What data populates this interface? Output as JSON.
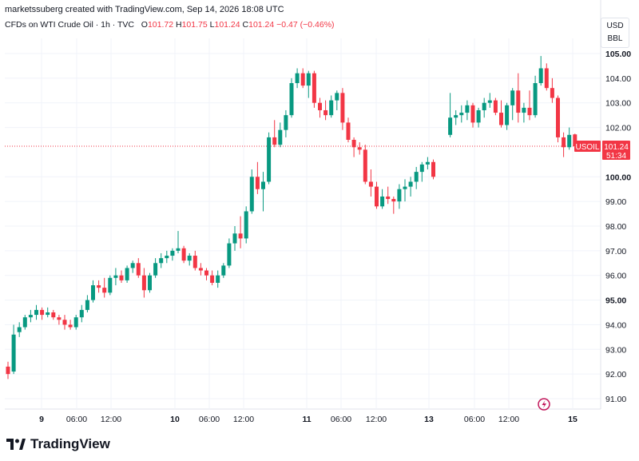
{
  "header": {
    "attribution": "marketssuberg created with TradingView.com, Sep 14, 2026 18:08 UTC",
    "instrument": "CFDs on WTI Crude Oil · 1h · TVC",
    "open_label": "O",
    "open": "101.72",
    "high_label": "H",
    "high": "101.75",
    "low_label": "L",
    "low": "101.24",
    "close_label": "C",
    "close": "101.24",
    "change": "−0.47 (−0.46%)"
  },
  "price_axis": {
    "currency": "USD",
    "unit": "BBL",
    "ticks": [
      "105.00",
      "104.00",
      "103.00",
      "102.00",
      "100.00",
      "99.00",
      "98.00",
      "97.00",
      "96.00",
      "95.00",
      "94.00",
      "93.00",
      "92.00",
      "91.00"
    ],
    "bold_ticks": [
      "105.00",
      "100.00",
      "95.00"
    ],
    "current_symbol": "USOIL",
    "current_price": "101.24",
    "countdown": "51:34"
  },
  "footer": {
    "logo_text": "TradingView"
  },
  "chart_data": {
    "type": "candlestick",
    "interval": "1h",
    "ylim": [
      90.5,
      105.6
    ],
    "current_price": 101.24,
    "up_color": "#089981",
    "down_color": "#f23645",
    "x_ticks": [
      "9",
      "06:00",
      "12:00",
      "10",
      "06:00",
      "12:00",
      "11",
      "06:00",
      "12:00",
      "13",
      "06:00",
      "12:00",
      "15"
    ],
    "x_ticks_bold": [
      "9",
      "10",
      "11",
      "13",
      "15"
    ],
    "grid": true,
    "candles": [
      {
        "o": 92.3,
        "h": 92.5,
        "l": 91.8,
        "c": 92.0
      },
      {
        "o": 92.1,
        "h": 94.0,
        "l": 92.0,
        "c": 93.6
      },
      {
        "o": 93.7,
        "h": 94.1,
        "l": 93.5,
        "c": 93.9
      },
      {
        "o": 93.9,
        "h": 94.4,
        "l": 93.8,
        "c": 94.3
      },
      {
        "o": 94.3,
        "h": 94.6,
        "l": 94.1,
        "c": 94.4
      },
      {
        "o": 94.4,
        "h": 94.8,
        "l": 94.2,
        "c": 94.6
      },
      {
        "o": 94.6,
        "h": 94.7,
        "l": 94.2,
        "c": 94.4
      },
      {
        "o": 94.4,
        "h": 94.7,
        "l": 94.3,
        "c": 94.5
      },
      {
        "o": 94.5,
        "h": 94.6,
        "l": 94.2,
        "c": 94.3
      },
      {
        "o": 94.3,
        "h": 94.4,
        "l": 94.0,
        "c": 94.2
      },
      {
        "o": 94.2,
        "h": 94.4,
        "l": 93.8,
        "c": 94.0
      },
      {
        "o": 94.0,
        "h": 94.2,
        "l": 93.8,
        "c": 93.9
      },
      {
        "o": 93.9,
        "h": 94.4,
        "l": 93.8,
        "c": 94.3
      },
      {
        "o": 94.3,
        "h": 94.8,
        "l": 94.1,
        "c": 94.6
      },
      {
        "o": 94.6,
        "h": 95.2,
        "l": 94.5,
        "c": 95.0
      },
      {
        "o": 95.0,
        "h": 95.8,
        "l": 94.9,
        "c": 95.6
      },
      {
        "o": 95.6,
        "h": 95.8,
        "l": 95.3,
        "c": 95.5
      },
      {
        "o": 95.5,
        "h": 95.9,
        "l": 95.1,
        "c": 95.3
      },
      {
        "o": 95.3,
        "h": 96.0,
        "l": 95.2,
        "c": 95.9
      },
      {
        "o": 95.9,
        "h": 96.3,
        "l": 95.6,
        "c": 96.0
      },
      {
        "o": 96.0,
        "h": 96.2,
        "l": 95.7,
        "c": 95.8
      },
      {
        "o": 95.8,
        "h": 96.4,
        "l": 95.7,
        "c": 96.3
      },
      {
        "o": 96.3,
        "h": 96.6,
        "l": 96.1,
        "c": 96.5
      },
      {
        "o": 96.5,
        "h": 96.7,
        "l": 95.9,
        "c": 96.0
      },
      {
        "o": 96.0,
        "h": 96.3,
        "l": 95.1,
        "c": 95.4
      },
      {
        "o": 95.4,
        "h": 96.1,
        "l": 95.3,
        "c": 96.0
      },
      {
        "o": 96.0,
        "h": 96.7,
        "l": 95.9,
        "c": 96.5
      },
      {
        "o": 96.5,
        "h": 96.9,
        "l": 96.3,
        "c": 96.7
      },
      {
        "o": 96.7,
        "h": 97.0,
        "l": 96.5,
        "c": 96.8
      },
      {
        "o": 96.8,
        "h": 97.1,
        "l": 96.6,
        "c": 97.0
      },
      {
        "o": 97.0,
        "h": 97.8,
        "l": 96.9,
        "c": 97.1
      },
      {
        "o": 97.1,
        "h": 97.2,
        "l": 96.5,
        "c": 96.6
      },
      {
        "o": 96.6,
        "h": 96.9,
        "l": 96.4,
        "c": 96.8
      },
      {
        "o": 96.8,
        "h": 97.0,
        "l": 96.2,
        "c": 96.3
      },
      {
        "o": 96.3,
        "h": 96.5,
        "l": 96.0,
        "c": 96.2
      },
      {
        "o": 96.2,
        "h": 96.3,
        "l": 95.8,
        "c": 96.0
      },
      {
        "o": 96.0,
        "h": 96.2,
        "l": 95.6,
        "c": 95.7
      },
      {
        "o": 95.7,
        "h": 96.2,
        "l": 95.5,
        "c": 96.0
      },
      {
        "o": 96.0,
        "h": 96.5,
        "l": 95.9,
        "c": 96.4
      },
      {
        "o": 96.4,
        "h": 97.5,
        "l": 96.3,
        "c": 97.3
      },
      {
        "o": 97.3,
        "h": 98.0,
        "l": 97.0,
        "c": 97.7
      },
      {
        "o": 97.7,
        "h": 98.4,
        "l": 97.1,
        "c": 97.5
      },
      {
        "o": 97.5,
        "h": 98.8,
        "l": 97.3,
        "c": 98.6
      },
      {
        "o": 98.6,
        "h": 100.3,
        "l": 98.5,
        "c": 100.0
      },
      {
        "o": 100.0,
        "h": 100.6,
        "l": 99.3,
        "c": 99.5
      },
      {
        "o": 99.5,
        "h": 100.2,
        "l": 98.6,
        "c": 99.8
      },
      {
        "o": 99.8,
        "h": 101.8,
        "l": 99.7,
        "c": 101.6
      },
      {
        "o": 101.6,
        "h": 102.3,
        "l": 101.2,
        "c": 101.3
      },
      {
        "o": 101.3,
        "h": 102.2,
        "l": 101.2,
        "c": 101.9
      },
      {
        "o": 101.9,
        "h": 102.7,
        "l": 101.6,
        "c": 102.5
      },
      {
        "o": 102.5,
        "h": 104.0,
        "l": 102.4,
        "c": 103.8
      },
      {
        "o": 103.8,
        "h": 104.4,
        "l": 103.6,
        "c": 104.2
      },
      {
        "o": 104.2,
        "h": 104.4,
        "l": 103.6,
        "c": 103.7
      },
      {
        "o": 103.7,
        "h": 104.3,
        "l": 103.2,
        "c": 104.2
      },
      {
        "o": 104.2,
        "h": 104.3,
        "l": 102.8,
        "c": 103.0
      },
      {
        "o": 103.0,
        "h": 103.2,
        "l": 102.4,
        "c": 102.7
      },
      {
        "o": 102.7,
        "h": 103.1,
        "l": 102.3,
        "c": 102.5
      },
      {
        "o": 102.5,
        "h": 103.3,
        "l": 102.4,
        "c": 103.1
      },
      {
        "o": 103.1,
        "h": 103.5,
        "l": 102.7,
        "c": 103.4
      },
      {
        "o": 103.4,
        "h": 103.6,
        "l": 101.9,
        "c": 102.2
      },
      {
        "o": 102.2,
        "h": 102.4,
        "l": 101.4,
        "c": 101.5
      },
      {
        "o": 101.5,
        "h": 101.6,
        "l": 100.8,
        "c": 101.2
      },
      {
        "o": 101.2,
        "h": 101.4,
        "l": 100.9,
        "c": 101.1
      },
      {
        "o": 101.1,
        "h": 101.3,
        "l": 99.7,
        "c": 99.8
      },
      {
        "o": 99.8,
        "h": 100.3,
        "l": 99.2,
        "c": 99.6
      },
      {
        "o": 99.6,
        "h": 99.8,
        "l": 98.7,
        "c": 98.8
      },
      {
        "o": 98.8,
        "h": 99.5,
        "l": 98.7,
        "c": 99.2
      },
      {
        "o": 99.2,
        "h": 99.6,
        "l": 98.9,
        "c": 99.1
      },
      {
        "o": 99.1,
        "h": 99.2,
        "l": 98.5,
        "c": 99.0
      },
      {
        "o": 99.0,
        "h": 99.7,
        "l": 98.7,
        "c": 99.5
      },
      {
        "o": 99.5,
        "h": 99.9,
        "l": 99.0,
        "c": 99.6
      },
      {
        "o": 99.6,
        "h": 100.0,
        "l": 99.2,
        "c": 99.8
      },
      {
        "o": 99.8,
        "h": 100.4,
        "l": 99.5,
        "c": 100.2
      },
      {
        "o": 100.2,
        "h": 100.6,
        "l": 99.8,
        "c": 100.5
      },
      {
        "o": 100.5,
        "h": 100.8,
        "l": 100.3,
        "c": 100.6
      },
      {
        "o": 100.6,
        "h": 100.7,
        "l": 99.9,
        "c": 100.0
      },
      {
        "o": 101.7,
        "h": 103.4,
        "l": 101.6,
        "c": 102.4
      },
      {
        "o": 102.4,
        "h": 102.7,
        "l": 102.1,
        "c": 102.5
      },
      {
        "o": 102.5,
        "h": 102.9,
        "l": 102.2,
        "c": 102.6
      },
      {
        "o": 102.6,
        "h": 103.1,
        "l": 102.3,
        "c": 102.9
      },
      {
        "o": 102.9,
        "h": 103.0,
        "l": 102.0,
        "c": 102.2
      },
      {
        "o": 102.2,
        "h": 102.8,
        "l": 102.0,
        "c": 102.7
      },
      {
        "o": 102.7,
        "h": 103.2,
        "l": 102.4,
        "c": 103.0
      },
      {
        "o": 103.0,
        "h": 103.4,
        "l": 102.8,
        "c": 103.1
      },
      {
        "o": 103.1,
        "h": 103.2,
        "l": 102.5,
        "c": 102.6
      },
      {
        "o": 102.6,
        "h": 103.1,
        "l": 102.0,
        "c": 102.1
      },
      {
        "o": 102.1,
        "h": 103.0,
        "l": 101.9,
        "c": 102.9
      },
      {
        "o": 102.9,
        "h": 103.6,
        "l": 102.3,
        "c": 103.5
      },
      {
        "o": 103.5,
        "h": 104.2,
        "l": 102.2,
        "c": 102.6
      },
      {
        "o": 102.6,
        "h": 103.0,
        "l": 102.2,
        "c": 102.8
      },
      {
        "o": 102.8,
        "h": 103.5,
        "l": 102.3,
        "c": 102.5
      },
      {
        "o": 102.5,
        "h": 104.1,
        "l": 102.4,
        "c": 103.8
      },
      {
        "o": 103.8,
        "h": 104.9,
        "l": 103.7,
        "c": 104.4
      },
      {
        "o": 104.4,
        "h": 104.6,
        "l": 103.5,
        "c": 103.6
      },
      {
        "o": 103.6,
        "h": 104.0,
        "l": 103.0,
        "c": 103.2
      },
      {
        "o": 103.2,
        "h": 103.3,
        "l": 101.4,
        "c": 101.6
      },
      {
        "o": 101.6,
        "h": 101.8,
        "l": 100.8,
        "c": 101.2
      },
      {
        "o": 101.2,
        "h": 102.0,
        "l": 101.1,
        "c": 101.7
      },
      {
        "o": 101.72,
        "h": 101.75,
        "l": 101.24,
        "c": 101.24
      }
    ]
  }
}
